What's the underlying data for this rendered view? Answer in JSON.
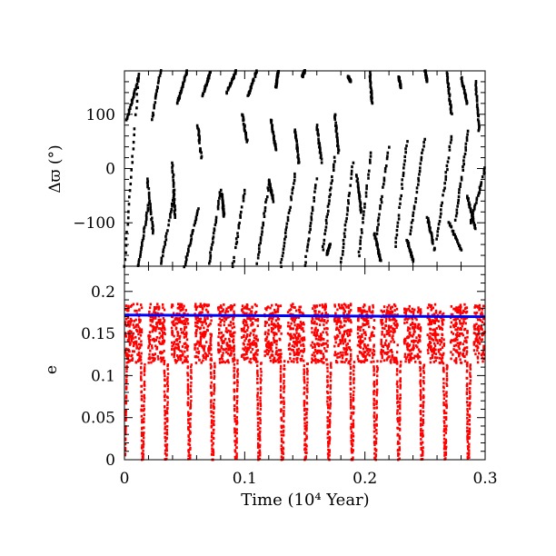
{
  "chart_data": [
    {
      "type": "scatter",
      "panel": "top",
      "ylabel": "Δϖ  (°)",
      "xlabel": "",
      "xlim": [
        0,
        0.3
      ],
      "ylim": [
        -180,
        180
      ],
      "yticks": [
        -100,
        0,
        100
      ],
      "ytick_labels": [
        "−100",
        "0",
        "100"
      ],
      "xtick_labels": [],
      "marker_color": "#000000",
      "series": [
        {
          "description_values": "Δϖ wraps through −180°..180°; fast retrograde-to-prograde circulation with ~26 cycles visible",
          "segments": [
            {
              "x": [
                0.0,
                0.012
              ],
              "y": [
                -180,
                175
              ]
            },
            {
              "x": [
                0.002,
                0.012
              ],
              "y": [
                90,
                170
              ]
            },
            {
              "x": [
                0.0115,
                0.0205
              ],
              "y": [
                -180,
                -60
              ]
            },
            {
              "x": [
                0.019,
                0.024
              ],
              "y": [
                -20,
                -120
              ]
            },
            {
              "x": [
                0.023,
                0.03
              ],
              "y": [
                90,
                180
              ]
            },
            {
              "x": [
                0.03,
                0.042
              ],
              "y": [
                -180,
                -40
              ]
            },
            {
              "x": [
                0.04,
                0.042
              ],
              "y": [
                10,
                -90
              ]
            },
            {
              "x": [
                0.044,
                0.052
              ],
              "y": [
                120,
                180
              ]
            },
            {
              "x": [
                0.05,
                0.062
              ],
              "y": [
                -180,
                -70
              ]
            },
            {
              "x": [
                0.061,
                0.064
              ],
              "y": [
                80,
                20
              ]
            },
            {
              "x": [
                0.065,
                0.072
              ],
              "y": [
                135,
                180
              ]
            },
            {
              "x": [
                0.07,
                0.08
              ],
              "y": [
                -180,
                -40
              ]
            },
            {
              "x": [
                0.081,
                0.083
              ],
              "y": [
                -45,
                -90
              ]
            },
            {
              "x": [
                0.085,
                0.093
              ],
              "y": [
                140,
                180
              ]
            },
            {
              "x": [
                0.09,
                0.1
              ],
              "y": [
                -180,
                -40
              ]
            },
            {
              "x": [
                0.098,
                0.102
              ],
              "y": [
                100,
                50
              ]
            },
            {
              "x": [
                0.103,
                0.11
              ],
              "y": [
                135,
                180
              ]
            },
            {
              "x": [
                0.11,
                0.12
              ],
              "y": [
                -180,
                -30
              ]
            },
            {
              "x": [
                0.12,
                0.124
              ],
              "y": [
                -20,
                -60
              ]
            },
            {
              "x": [
                0.122,
                0.126
              ],
              "y": [
                90,
                35
              ]
            },
            {
              "x": [
                0.126,
                0.128
              ],
              "y": [
                150,
                180
              ]
            },
            {
              "x": [
                0.13,
                0.142
              ],
              "y": [
                -180,
                -10
              ]
            },
            {
              "x": [
                0.142,
                0.145
              ],
              "y": [
                70,
                10
              ]
            },
            {
              "x": [
                0.148,
                0.15
              ],
              "y": [
                170,
                180
              ]
            },
            {
              "x": [
                0.15,
                0.16
              ],
              "y": [
                -180,
                -20
              ]
            },
            {
              "x": [
                0.16,
                0.164
              ],
              "y": [
                80,
                10
              ]
            },
            {
              "x": [
                0.165,
                0.175
              ],
              "y": [
                -150,
                20
              ]
            },
            {
              "x": [
                0.168,
                0.171
              ],
              "y": [
                -160,
                -140
              ]
            },
            {
              "x": [
                0.175,
                0.178
              ],
              "y": [
                100,
                30
              ]
            },
            {
              "x": [
                0.18,
                0.19
              ],
              "y": [
                -180,
                10
              ]
            },
            {
              "x": [
                0.186,
                0.188
              ],
              "y": [
                170,
                160
              ]
            },
            {
              "x": [
                0.193,
                0.197
              ],
              "y": [
                -10,
                -80
              ]
            },
            {
              "x": [
                0.195,
                0.205
              ],
              "y": [
                -160,
                30
              ]
            },
            {
              "x": [
                0.204,
                0.206
              ],
              "y": [
                180,
                120
              ]
            },
            {
              "x": [
                0.208,
                0.213
              ],
              "y": [
                -120,
                -170
              ]
            },
            {
              "x": [
                0.21,
                0.22
              ],
              "y": [
                -120,
                40
              ]
            },
            {
              "x": [
                0.225,
                0.235
              ],
              "y": [
                -150,
                50
              ]
            },
            {
              "x": [
                0.228,
                0.23
              ],
              "y": [
                170,
                150
              ]
            },
            {
              "x": [
                0.235,
                0.24
              ],
              "y": [
                -130,
                -170
              ]
            },
            {
              "x": [
                0.238,
                0.25
              ],
              "y": [
                -120,
                60
              ]
            },
            {
              "x": [
                0.25,
                0.252
              ],
              "y": [
                180,
                160
              ]
            },
            {
              "x": [
                0.252,
                0.258
              ],
              "y": [
                -90,
                -150
              ]
            },
            {
              "x": [
                0.26,
                0.272
              ],
              "y": [
                -130,
                60
              ]
            },
            {
              "x": [
                0.268,
                0.272
              ],
              "y": [
                180,
                100
              ]
            },
            {
              "x": [
                0.27,
                0.28
              ],
              "y": [
                -100,
                -150
              ]
            },
            {
              "x": [
                0.275,
                0.286
              ],
              "y": [
                -100,
                70
              ]
            },
            {
              "x": [
                0.28,
                0.285
              ],
              "y": [
                170,
                120
              ]
            },
            {
              "x": [
                0.285,
                0.292
              ],
              "y": [
                -50,
                -110
              ]
            },
            {
              "x": [
                0.288,
                0.3
              ],
              "y": [
                -100,
                0
              ]
            },
            {
              "x": [
                0.292,
                0.295
              ],
              "y": [
                160,
                70
              ]
            }
          ]
        }
      ]
    },
    {
      "type": "scatter",
      "panel": "bottom",
      "xlabel": "Time (10⁴ Year)",
      "ylabel": "e",
      "xlim": [
        0,
        0.3
      ],
      "ylim": [
        0,
        0.23
      ],
      "xticks": [
        0,
        0.1,
        0.2,
        0.3
      ],
      "xtick_labels": [
        "0",
        "0.1",
        "0.2",
        "0.3"
      ],
      "yticks": [
        0,
        0.05,
        0.1,
        0.15,
        0.2
      ],
      "ytick_labels": [
        "0",
        "0.05",
        "0.1",
        "0.15",
        "0.2"
      ],
      "series": [
        {
          "color": "#ff0000",
          "style": "dots",
          "oscillation": {
            "period": 0.01935,
            "min": 0.0,
            "max": 0.19,
            "dense_band": [
              0.115,
              0.185
            ],
            "cycles": 15
          }
        },
        {
          "color": "#0000ff",
          "style": "line",
          "x": [
            0,
            0.3
          ],
          "y": [
            0.172,
            0.17
          ]
        }
      ]
    }
  ]
}
